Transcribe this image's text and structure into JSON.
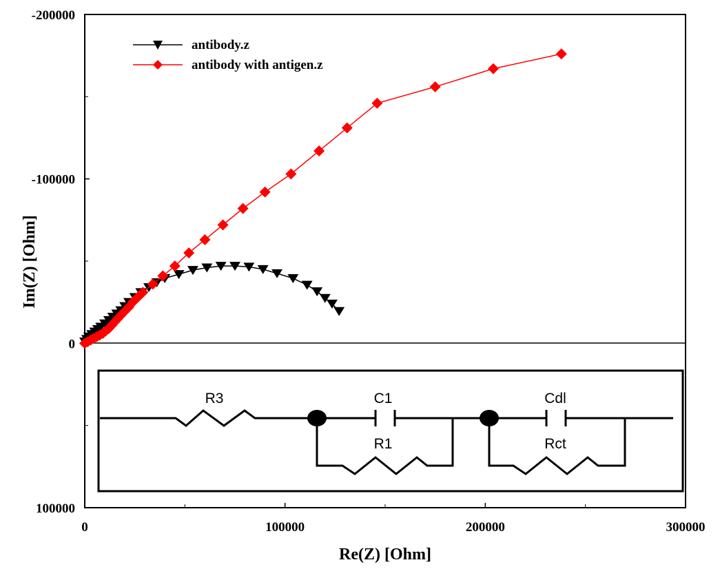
{
  "chart_data": {
    "type": "scatter",
    "title": "",
    "xlabel": "Re(Z) [Ohm]",
    "ylabel": "Im(Z) [Ohm]",
    "xlim": [
      0,
      300000
    ],
    "ylim": [
      100000,
      -200000
    ],
    "y_axis_inverted": true,
    "x_ticks": [
      "0",
      "100000",
      "200000",
      "300000"
    ],
    "y_ticks": [
      "-200000",
      "-100000",
      "0",
      "100000"
    ],
    "x_tick_values": [
      0,
      100000,
      200000,
      300000
    ],
    "y_tick_values": [
      -200000,
      -100000,
      0,
      100000
    ],
    "zero_line": true,
    "legend_position": "top-left",
    "series": [
      {
        "name": "antibody.z",
        "color": "#000000",
        "marker": "triangle-down",
        "x": [
          0,
          1000,
          2000,
          3500,
          5000,
          6500,
          8000,
          10000,
          12000,
          14000,
          16000,
          18000,
          20000,
          22000,
          25000,
          28000,
          32000,
          36000,
          40000,
          47000,
          54000,
          61000,
          68000,
          75000,
          82000,
          89000,
          96000,
          104000,
          111000,
          116000,
          120000,
          123500,
          127000
        ],
        "y": [
          -1000,
          -2500,
          -4000,
          -5500,
          -7000,
          -8500,
          -10000,
          -12000,
          -14000,
          -16000,
          -18000,
          -20000,
          -22500,
          -25000,
          -28000,
          -31000,
          -34000,
          -37000,
          -39500,
          -42000,
          -44500,
          -46000,
          -47000,
          -47000,
          -46500,
          -45000,
          -42500,
          -39500,
          -35500,
          -31500,
          -27500,
          -24000,
          -19500
        ]
      },
      {
        "name": "antibody with antigen.z",
        "color": "#ff0000",
        "marker": "diamond",
        "x": [
          0,
          1500,
          3000,
          4500,
          6000,
          7500,
          9000,
          10500,
          12000,
          13500,
          15000,
          16500,
          18000,
          20000,
          22000,
          24000,
          26500,
          29000,
          34000,
          39000,
          45000,
          52000,
          60000,
          69000,
          79000,
          90000,
          103000,
          117000,
          131000,
          146000,
          175000,
          204000,
          238000
        ],
        "y": [
          0,
          -1000,
          -2000,
          -3000,
          -4000,
          -5000,
          -6000,
          -7500,
          -9000,
          -11000,
          -13000,
          -15000,
          -17000,
          -19500,
          -22000,
          -25000,
          -28000,
          -31000,
          -36000,
          -41000,
          -47000,
          -55000,
          -63000,
          -72000,
          -82000,
          -92000,
          -103000,
          -117000,
          -131000,
          -146000,
          -156000,
          -167000,
          -176000
        ]
      }
    ]
  },
  "inset": {
    "labels": {
      "r3": "R3",
      "c1": "C1",
      "r1": "R1",
      "cdl": "Cdl",
      "rct": "Rct"
    }
  }
}
